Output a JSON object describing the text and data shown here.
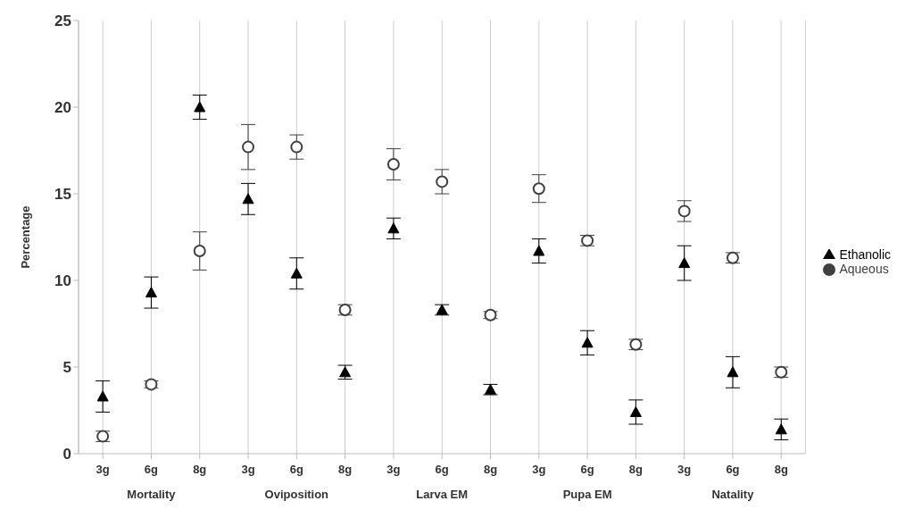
{
  "chart_data": {
    "type": "scatter",
    "ylabel": "Percentage",
    "categories": [
      "3g",
      "6g",
      "8g",
      "3g",
      "6g",
      "8g",
      "3g",
      "6g",
      "8g",
      "3g",
      "6g",
      "8g",
      "3g",
      "6g",
      "8g"
    ],
    "annotations": [
      "Mortality",
      "Oviposition",
      "Larva EM",
      "Pupa EM",
      "Natality"
    ],
    "series": [
      {
        "name": "Ethanolic",
        "color": "#000000",
        "marker": "triangle",
        "values": [
          3.3,
          9.3,
          20.0,
          14.7,
          10.4,
          4.7,
          13.0,
          8.3,
          3.7,
          11.7,
          6.4,
          2.4,
          11.0,
          4.7,
          1.4
        ],
        "errors": [
          0.9,
          0.9,
          0.7,
          0.9,
          0.9,
          0.4,
          0.6,
          0.3,
          0.3,
          0.7,
          0.7,
          0.7,
          1.0,
          0.9,
          0.6
        ]
      },
      {
        "name": "Aqueous",
        "color": "#404040",
        "marker": "circle",
        "values": [
          1.0,
          4.0,
          11.7,
          17.7,
          17.7,
          8.3,
          16.7,
          15.7,
          8.0,
          15.3,
          12.3,
          6.3,
          14.0,
          11.3,
          4.7
        ],
        "errors": [
          0.3,
          0.2,
          1.1,
          1.3,
          0.7,
          0.3,
          0.9,
          0.7,
          0.2,
          0.8,
          0.3,
          0.3,
          0.6,
          0.3,
          0.3
        ]
      }
    ],
    "ylim": [
      0,
      25
    ],
    "yticks": [
      0,
      5,
      10,
      15,
      20,
      25
    ],
    "grid": "x",
    "legend": "right"
  }
}
